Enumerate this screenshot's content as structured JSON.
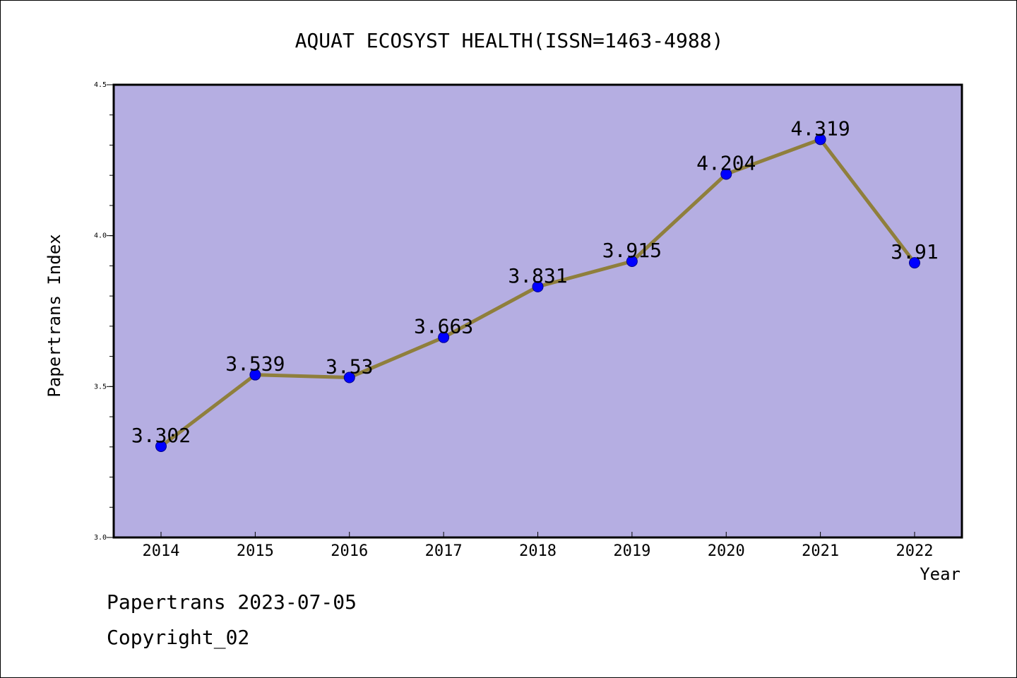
{
  "chart_data": {
    "type": "line",
    "title": "AQUAT ECOSYST HEALTH(ISSN=1463-4988)",
    "xlabel": "Year",
    "ylabel": "Papertrans Index",
    "categories": [
      "2014",
      "2015",
      "2016",
      "2017",
      "2018",
      "2019",
      "2020",
      "2021",
      "2022"
    ],
    "series": [
      {
        "values": [
          3.302,
          3.539,
          3.53,
          3.663,
          3.831,
          3.915,
          4.204,
          4.319,
          3.91
        ],
        "labels": [
          "3.302",
          "3.539",
          "3.53",
          "3.663",
          "3.831",
          "3.915",
          "4.204",
          "4.319",
          "3.91"
        ]
      }
    ],
    "ylim": [
      3.0,
      4.5
    ],
    "yticks": [
      3.0,
      3.5,
      4.0,
      4.5
    ],
    "ytick_labels": [
      "3.0",
      "3.5",
      "4.0",
      "4.5"
    ],
    "grid": false,
    "colors": {
      "plot_background": "#b5aee2",
      "line": "#8f7f3c",
      "marker": "#0000ff"
    }
  },
  "footer": {
    "date_line": "Papertrans 2023-07-05",
    "copyright_line": "Copyright_02"
  }
}
